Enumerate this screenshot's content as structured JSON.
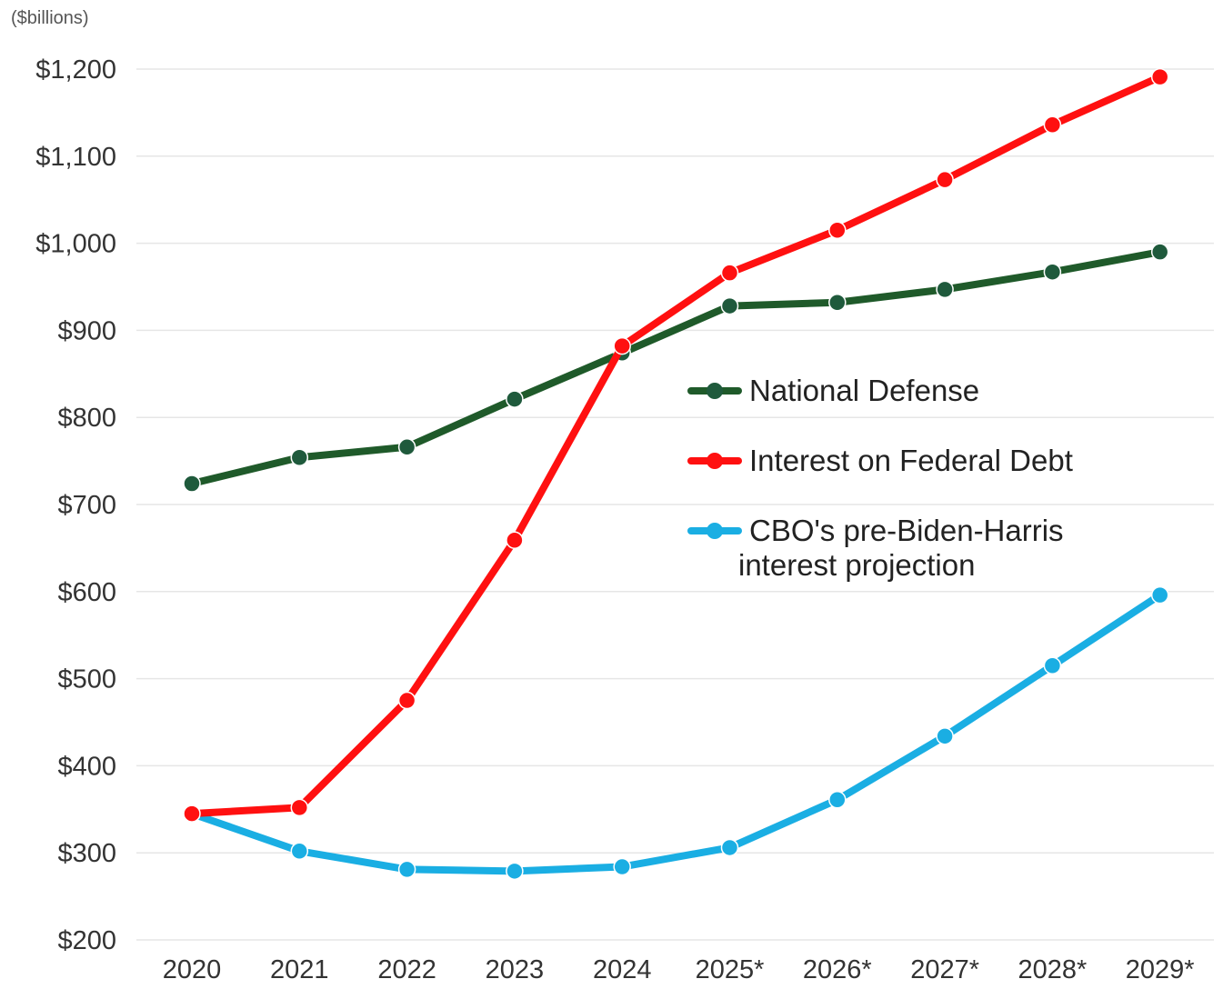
{
  "chart_data": {
    "type": "line",
    "unit_label": "($billions)",
    "title": "",
    "xlabel": "",
    "ylabel": "",
    "ylim": [
      200,
      1200
    ],
    "ytick_values": [
      1200,
      1100,
      1000,
      900,
      800,
      700,
      600,
      500,
      400,
      300,
      200
    ],
    "yticks": [
      "$1,200",
      "$1,100",
      "$1,000",
      "$900",
      "$800",
      "$700",
      "$600",
      "$500",
      "$400",
      "$300",
      "$200"
    ],
    "categories": [
      "2020",
      "2021",
      "2022",
      "2023",
      "2024",
      "2025*",
      "2026*",
      "2027*",
      "2028*",
      "2029*"
    ],
    "grid": true,
    "legend_position": "center-right",
    "series": [
      {
        "name": "National Defense",
        "color": "#1f5a2a",
        "marker_color": "#1f5a3c",
        "values": [
          724,
          754,
          766,
          821,
          874,
          928,
          932,
          947,
          967,
          990
        ]
      },
      {
        "name": "Interest on Federal Debt",
        "color": "#ff1010",
        "marker_color": "#ff1010",
        "values": [
          345,
          352,
          475,
          659,
          882,
          966,
          1015,
          1073,
          1136,
          1191
        ]
      },
      {
        "name": "CBO's pre-Biden-Harris interest projection",
        "name_lines": [
          "CBO's pre-Biden-Harris",
          "interest  projection"
        ],
        "color": "#1aaee3",
        "marker_color": "#1aaee3",
        "values": [
          345,
          302,
          281,
          279,
          284,
          306,
          361,
          434,
          515,
          596
        ]
      }
    ]
  }
}
